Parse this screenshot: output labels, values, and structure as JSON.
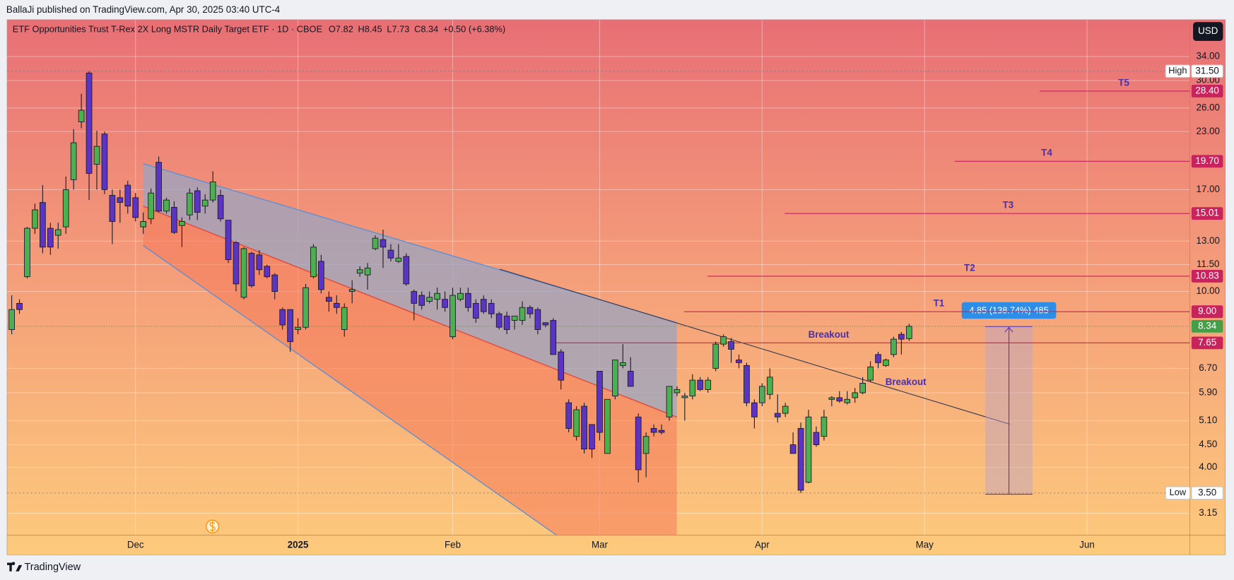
{
  "header": {
    "byline": "BallaJi published on TradingView.com, Apr 30, 2025 03:40 UTC-4",
    "brand": "TradingView"
  },
  "chart_data": {
    "type": "candlestick",
    "title": "ETF Opportunities Trust T-Rex 2X Long MSTR Daily Target ETF · 1D · CBOE",
    "ohlc_prefixes": [
      "O",
      "H",
      "L",
      "C"
    ],
    "change": "+0.50 (+6.38%)",
    "currency": "USD",
    "up_color": "#4caf50",
    "down_color": "#5b34c6",
    "log_scale": true,
    "grid": true,
    "open": [
      8.2,
      9.4,
      10.8,
      13.9,
      15.9,
      13.9,
      13.4,
      14.0,
      17.9,
      24.2,
      31.2,
      19.4,
      22.7,
      16.5,
      16.3,
      17.4,
      16.3,
      14.0,
      14.6,
      19.6,
      15.2,
      15.5,
      14.1,
      14.9,
      16.9,
      15.6,
      16.1,
      16.5,
      14.5,
      12.9,
      9.7,
      12.2,
      12.1,
      11.4,
      10.9,
      9.1,
      9.1,
      8.2,
      8.3,
      10.8,
      11.7,
      9.7,
      9.4,
      8.2,
      10.0,
      11.0,
      10.9,
      12.5,
      13.1,
      12.4,
      11.7,
      12.0,
      10.0,
      9.8,
      9.5,
      9.6,
      9.6,
      7.9,
      9.6,
      9.9,
      9.4,
      9.6,
      9.4,
      8.9,
      8.8,
      8.6,
      8.6,
      9.2,
      9.1,
      8.5,
      8.6,
      7.3,
      5.6,
      4.7,
      5.5,
      5.0,
      6.6,
      4.3,
      5.8,
      6.8,
      6.6,
      5.2,
      4.3,
      4.9,
      4.85,
      5.2,
      5.9,
      5.75,
      5.8,
      6.3,
      6.0,
      6.7,
      7.6,
      7.7,
      7.0,
      6.8,
      5.6,
      5.6,
      5.85,
      5.3,
      5.3,
      4.5,
      4.9,
      3.7,
      4.8,
      4.7,
      5.7,
      5.75,
      5.6,
      5.75,
      5.9,
      6.3,
      7.2,
      6.8,
      7.2,
      8.0,
      7.82
    ],
    "high": [
      9.8,
      9.6,
      14.0,
      15.8,
      17.4,
      14.3,
      14.3,
      18.2,
      23.3,
      28.0,
      31.5,
      23.1,
      23.0,
      17.0,
      17.0,
      17.8,
      16.7,
      15.1,
      17.1,
      20.2,
      16.3,
      16.0,
      14.7,
      17.1,
      17.2,
      16.6,
      18.7,
      17.0,
      14.5,
      13.0,
      12.6,
      12.3,
      12.4,
      11.5,
      11.0,
      9.2,
      9.1,
      8.7,
      10.4,
      12.8,
      12.1,
      10.0,
      9.8,
      9.4,
      10.6,
      11.4,
      11.6,
      13.4,
      13.8,
      12.8,
      12.8,
      12.2,
      10.1,
      10.0,
      10.0,
      10.2,
      10.0,
      10.2,
      10.2,
      10.2,
      9.6,
      9.8,
      9.6,
      9.0,
      9.0,
      8.8,
      9.5,
      9.3,
      9.2,
      8.5,
      8.7,
      7.4,
      5.7,
      5.5,
      5.6,
      5.0,
      6.6,
      5.7,
      7.0,
      7.6,
      7.1,
      5.3,
      4.8,
      5.0,
      5.0,
      6.1,
      6.1,
      5.9,
      6.5,
      6.4,
      6.4,
      7.7,
      8.0,
      7.85,
      7.2,
      6.9,
      5.7,
      6.2,
      6.7,
      5.85,
      5.6,
      4.8,
      5.05,
      5.4,
      4.95,
      5.4,
      5.8,
      5.95,
      5.95,
      6.05,
      6.4,
      6.95,
      7.3,
      7.05,
      7.9,
      8.1,
      8.45
    ],
    "low": [
      8.0,
      8.9,
      10.7,
      13.5,
      12.2,
      12.1,
      12.5,
      13.5,
      17.0,
      23.4,
      16.1,
      17.0,
      16.6,
      12.8,
      14.3,
      15.0,
      14.4,
      13.5,
      14.2,
      15.1,
      15.0,
      13.5,
      12.6,
      14.5,
      14.5,
      15.0,
      15.9,
      14.4,
      11.6,
      10.0,
      9.6,
      10.2,
      10.9,
      10.7,
      9.6,
      8.2,
      7.3,
      8.0,
      8.2,
      10.7,
      9.9,
      9.0,
      8.9,
      7.9,
      9.4,
      10.8,
      10.1,
      12.4,
      11.3,
      11.7,
      11.6,
      10.3,
      8.6,
      9.1,
      9.4,
      9.1,
      9.0,
      7.8,
      9.5,
      9.0,
      8.5,
      8.9,
      8.7,
      8.2,
      8.0,
      8.2,
      8.4,
      8.7,
      8.0,
      8.3,
      7.2,
      6.0,
      4.8,
      4.6,
      4.3,
      4.2,
      4.6,
      4.3,
      5.7,
      6.7,
      6.1,
      3.7,
      3.8,
      4.7,
      4.75,
      5.1,
      5.8,
      5.1,
      5.7,
      5.95,
      5.9,
      6.6,
      7.5,
      6.9,
      6.7,
      5.5,
      4.9,
      5.5,
      5.7,
      5.05,
      5.2,
      4.3,
      3.5,
      3.68,
      4.45,
      4.6,
      5.5,
      5.6,
      5.55,
      5.6,
      5.85,
      6.25,
      6.7,
      6.75,
      7.1,
      7.2,
      7.73
    ],
    "close": [
      9.1,
      9.1,
      13.9,
      15.3,
      12.6,
      12.6,
      13.8,
      17.0,
      21.7,
      25.7,
      18.5,
      21.3,
      17.0,
      14.4,
      15.9,
      15.6,
      14.7,
      14.4,
      16.7,
      15.2,
      16.1,
      13.6,
      14.4,
      16.7,
      15.1,
      16.1,
      17.7,
      14.6,
      11.8,
      10.4,
      12.5,
      10.3,
      11.2,
      10.8,
      10.0,
      8.4,
      7.7,
      8.3,
      10.2,
      12.6,
      10.1,
      9.5,
      9.2,
      9.2,
      10.1,
      11.2,
      11.3,
      13.2,
      12.6,
      11.9,
      11.9,
      10.4,
      9.4,
      9.3,
      9.7,
      9.9,
      9.2,
      9.8,
      9.9,
      9.2,
      8.7,
      9.0,
      8.9,
      8.3,
      8.2,
      8.8,
      9.2,
      8.9,
      8.2,
      8.4,
      7.2,
      6.3,
      4.9,
      5.4,
      4.4,
      4.4,
      4.8,
      5.7,
      7.0,
      6.9,
      6.1,
      3.95,
      4.7,
      4.8,
      4.8,
      6.1,
      6.0,
      5.8,
      6.3,
      6.0,
      6.3,
      7.6,
      7.9,
      7.4,
      6.9,
      5.6,
      5.2,
      6.1,
      6.4,
      5.2,
      5.5,
      4.3,
      3.55,
      5.2,
      4.5,
      5.2,
      5.75,
      5.65,
      5.7,
      5.9,
      6.2,
      6.75,
      6.9,
      7.0,
      7.8,
      7.8,
      8.34
    ],
    "xlim": [
      -0.6,
      152.3
    ],
    "xticks": [
      {
        "value": 16,
        "label": "Dec"
      },
      {
        "value": 37,
        "label": "2025"
      },
      {
        "value": 57,
        "label": "Feb"
      },
      {
        "value": 76,
        "label": "Mar"
      },
      {
        "value": 97,
        "label": "Apr"
      },
      {
        "value": 118,
        "label": "May"
      },
      {
        "value": 139,
        "label": "Jun"
      }
    ],
    "ylim": [
      2.81,
      41.2
    ],
    "yticks": [
      {
        "value": 34,
        "label": "34.00"
      },
      {
        "value": 30,
        "label": "30.00"
      },
      {
        "value": 26,
        "label": "26.00"
      },
      {
        "value": 23,
        "label": "23.00"
      },
      {
        "value": 17,
        "label": "17.00"
      },
      {
        "value": 13,
        "label": "13.00"
      },
      {
        "value": 11.5,
        "label": "11.50"
      },
      {
        "value": 10,
        "label": "10.00"
      },
      {
        "value": 6.7,
        "label": "6.70"
      },
      {
        "value": 5.9,
        "label": "5.90"
      },
      {
        "value": 5.1,
        "label": "5.10"
      },
      {
        "value": 4.5,
        "label": "4.50"
      },
      {
        "value": 4,
        "label": "4.00"
      },
      {
        "value": 3.15,
        "label": "3.15"
      }
    ],
    "levels": [
      {
        "value": 31.5,
        "value_label": "31.50",
        "tag": "High",
        "color": "#ffffff"
      },
      {
        "value": 28.4,
        "value_label": "28.40",
        "label": "T5",
        "color": "#c8235c"
      },
      {
        "value": 19.7,
        "value_label": "19.70",
        "label": "T4",
        "color": "#c8235c"
      },
      {
        "value": 15.01,
        "value_label": "15.01",
        "label": "T3",
        "color": "#c8235c"
      },
      {
        "value": 10.83,
        "value_label": "10.83",
        "label": "T2",
        "color": "#c8235c"
      },
      {
        "value": 9.0,
        "value_label": "9.00",
        "label": "T1",
        "color": "#c8235c"
      },
      {
        "value": 7.65,
        "value_label": "7.65",
        "color": "#c8235c"
      },
      {
        "value": 3.5,
        "value_label": "3.50",
        "tag": "Low",
        "color": "#ffffff"
      }
    ],
    "current_color": "#43a047",
    "annotations": {
      "breakout": [
        "Breakout",
        "Breakout"
      ],
      "measure": "4.85 (138.74%) 485"
    }
  }
}
